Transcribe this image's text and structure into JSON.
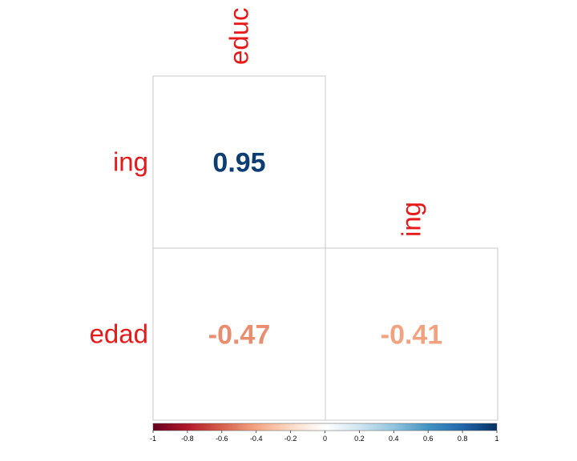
{
  "chart_data": {
    "type": "heatmap",
    "title": "",
    "xlabel": "",
    "ylabel": "",
    "columns": [
      "educ",
      "ing"
    ],
    "rows": [
      "ing",
      "edad"
    ],
    "cells": [
      {
        "row": "ing",
        "col": "educ",
        "value": 0.95,
        "label": "0.95"
      },
      {
        "row": "edad",
        "col": "educ",
        "value": -0.47,
        "label": "-0.47"
      },
      {
        "row": "edad",
        "col": "ing",
        "value": -0.41,
        "label": "-0.41"
      }
    ],
    "colorbar": {
      "range": [
        -1,
        1
      ],
      "ticks": [
        "-1",
        "-0.8",
        "-0.6",
        "-0.4",
        "-0.2",
        "0",
        "0.2",
        "0.4",
        "0.6",
        "0.8",
        "1"
      ]
    },
    "label_color": "#e8191b",
    "grid_color": "#c8c8c8"
  }
}
